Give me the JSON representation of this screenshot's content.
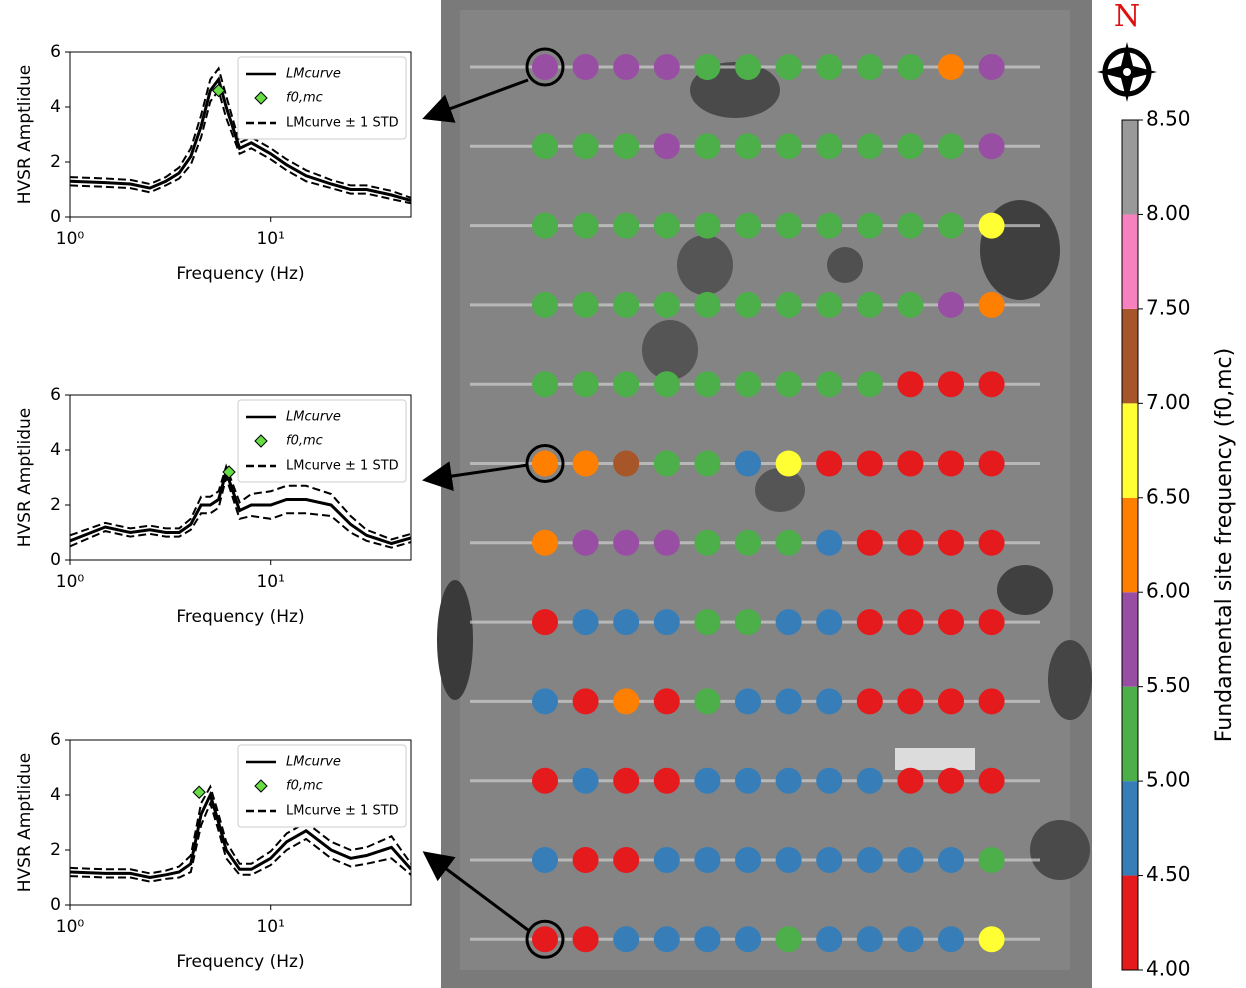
{
  "chart_data": [
    {
      "type": "line",
      "xscale": "log",
      "xlabel": "Frequency (Hz)",
      "ylabel": "HVSR Amptlidue",
      "xlim": [
        1,
        50
      ],
      "ylim": [
        0,
        6
      ],
      "xticks": [
        {
          "value": 1,
          "label": "10⁰"
        },
        {
          "value": 10,
          "label": "10¹"
        }
      ],
      "yticks": [
        0,
        2,
        4,
        6
      ],
      "x": [
        1,
        1.5,
        2,
        2.5,
        3,
        3.5,
        4,
        4.5,
        5,
        5.5,
        6,
        7,
        8,
        10,
        12,
        15,
        20,
        25,
        30,
        40,
        50
      ],
      "series": [
        {
          "name": "LMcurve",
          "color": "#000000",
          "values": [
            1.3,
            1.25,
            1.2,
            1.05,
            1.3,
            1.6,
            2.2,
            3.3,
            4.6,
            5.0,
            4.0,
            2.5,
            2.7,
            2.3,
            1.9,
            1.5,
            1.2,
            1.0,
            1.0,
            0.8,
            0.6
          ]
        },
        {
          "name": "LMcurve ± 1 STD",
          "color": "#000000",
          "dashed": true,
          "upper": [
            1.45,
            1.4,
            1.35,
            1.2,
            1.45,
            1.8,
            2.5,
            3.7,
            5.0,
            5.4,
            4.4,
            2.7,
            2.9,
            2.5,
            2.1,
            1.7,
            1.35,
            1.15,
            1.15,
            0.95,
            0.7
          ],
          "lower": [
            1.15,
            1.1,
            1.05,
            0.9,
            1.15,
            1.4,
            1.9,
            2.9,
            4.2,
            4.6,
            3.6,
            2.3,
            2.5,
            2.1,
            1.7,
            1.3,
            1.05,
            0.85,
            0.85,
            0.65,
            0.5
          ]
        }
      ],
      "points": {
        "name": "f0,mc",
        "color": "#66dd44",
        "x": [
          5.5
        ],
        "values": [
          4.6
        ]
      }
    },
    {
      "type": "line",
      "xscale": "log",
      "xlabel": "Frequency (Hz)",
      "ylabel": "HVSR Amptlidue",
      "xlim": [
        1,
        50
      ],
      "ylim": [
        0,
        6
      ],
      "xticks": [
        {
          "value": 1,
          "label": "10⁰"
        },
        {
          "value": 10,
          "label": "10¹"
        }
      ],
      "yticks": [
        0,
        2,
        4,
        6
      ],
      "x": [
        1,
        1.5,
        2,
        2.5,
        3,
        3.5,
        4,
        4.5,
        5,
        5.5,
        6,
        7,
        8,
        10,
        12,
        15,
        20,
        25,
        30,
        40,
        50
      ],
      "series": [
        {
          "name": "LMcurve",
          "color": "#000000",
          "values": [
            0.7,
            1.2,
            1.0,
            1.1,
            1.0,
            1.0,
            1.3,
            2.0,
            2.0,
            2.2,
            3.2,
            1.8,
            2.0,
            2.0,
            2.2,
            2.2,
            2.0,
            1.3,
            0.9,
            0.6,
            0.8
          ]
        },
        {
          "name": "LMcurve ± 1 STD",
          "color": "#000000",
          "dashed": true,
          "upper": [
            0.9,
            1.35,
            1.15,
            1.25,
            1.15,
            1.15,
            1.5,
            2.3,
            2.3,
            2.5,
            3.4,
            2.1,
            2.4,
            2.5,
            2.7,
            2.7,
            2.4,
            1.6,
            1.1,
            0.75,
            0.95
          ],
          "lower": [
            0.5,
            1.05,
            0.85,
            0.95,
            0.85,
            0.85,
            1.1,
            1.7,
            1.7,
            1.9,
            3.0,
            1.5,
            1.6,
            1.5,
            1.7,
            1.7,
            1.6,
            1.0,
            0.7,
            0.45,
            0.65
          ]
        }
      ],
      "points": {
        "name": "f0,mc",
        "color": "#66dd44",
        "x": [
          6.2
        ],
        "values": [
          3.2
        ]
      }
    },
    {
      "type": "line",
      "xscale": "log",
      "xlabel": "Frequency (Hz)",
      "ylabel": "HVSR Amptlidue",
      "xlim": [
        1,
        50
      ],
      "ylim": [
        0,
        6
      ],
      "xticks": [
        {
          "value": 1,
          "label": "10⁰"
        },
        {
          "value": 10,
          "label": "10¹"
        }
      ],
      "yticks": [
        0,
        2,
        4,
        6
      ],
      "x": [
        1,
        1.5,
        2,
        2.5,
        3,
        3.5,
        4,
        4.5,
        5,
        5.5,
        6,
        7,
        8,
        10,
        12,
        15,
        20,
        25,
        30,
        40,
        50
      ],
      "series": [
        {
          "name": "LMcurve",
          "color": "#000000",
          "values": [
            1.2,
            1.15,
            1.15,
            1.0,
            1.1,
            1.2,
            1.5,
            3.3,
            4.0,
            3.0,
            2.0,
            1.3,
            1.3,
            1.7,
            2.3,
            2.7,
            2.0,
            1.7,
            1.8,
            2.1,
            1.3
          ]
        },
        {
          "name": "LMcurve ± 1 STD",
          "color": "#000000",
          "dashed": true,
          "upper": [
            1.35,
            1.3,
            1.3,
            1.15,
            1.25,
            1.4,
            1.8,
            3.7,
            4.3,
            3.3,
            2.3,
            1.5,
            1.5,
            1.95,
            2.6,
            3.0,
            2.3,
            2.0,
            2.1,
            2.5,
            1.5
          ],
          "lower": [
            1.05,
            1.0,
            1.0,
            0.85,
            0.95,
            1.0,
            1.2,
            2.9,
            3.7,
            2.7,
            1.7,
            1.1,
            1.1,
            1.45,
            2.0,
            2.4,
            1.7,
            1.4,
            1.5,
            1.7,
            1.1
          ]
        }
      ],
      "points": {
        "name": "f0,mc",
        "color": "#66dd44",
        "x": [
          4.4
        ],
        "values": [
          4.1
        ]
      }
    },
    {
      "type": "dot_grid",
      "north": "N",
      "values": [
        [
          5.75,
          5.75,
          5.75,
          5.75,
          5.25,
          5.25,
          5.25,
          5.25,
          5.25,
          5.25,
          6.25,
          5.75
        ],
        [
          5.25,
          5.25,
          5.25,
          5.75,
          5.25,
          5.25,
          5.25,
          5.25,
          5.25,
          5.25,
          5.25,
          5.75
        ],
        [
          5.25,
          5.25,
          5.25,
          5.25,
          5.25,
          5.25,
          5.25,
          5.25,
          5.25,
          5.25,
          5.25,
          6.75
        ],
        [
          5.25,
          5.25,
          5.25,
          5.25,
          5.25,
          5.25,
          5.25,
          5.25,
          5.25,
          5.25,
          5.75,
          6.25
        ],
        [
          5.25,
          5.25,
          5.25,
          5.25,
          5.25,
          5.25,
          5.25,
          5.25,
          5.25,
          4.25,
          4.25,
          4.25
        ],
        [
          6.25,
          6.25,
          7.25,
          5.25,
          5.25,
          4.75,
          6.75,
          4.25,
          4.25,
          4.25,
          4.25,
          4.25
        ],
        [
          6.25,
          5.75,
          5.75,
          5.75,
          5.25,
          5.25,
          5.25,
          4.75,
          4.25,
          4.25,
          4.25,
          4.25
        ],
        [
          4.25,
          4.75,
          4.75,
          4.75,
          5.25,
          5.25,
          4.75,
          4.75,
          4.25,
          4.25,
          4.25,
          4.25
        ],
        [
          4.75,
          4.25,
          6.25,
          4.25,
          5.25,
          4.75,
          4.75,
          4.75,
          4.25,
          4.25,
          4.25,
          4.25
        ],
        [
          4.25,
          4.75,
          4.25,
          4.25,
          4.75,
          4.75,
          4.75,
          4.75,
          4.75,
          4.25,
          4.25,
          4.25
        ],
        [
          4.75,
          4.25,
          4.25,
          4.75,
          4.75,
          4.75,
          4.75,
          4.75,
          4.75,
          4.75,
          4.75,
          5.25
        ],
        [
          4.25,
          4.25,
          4.75,
          4.75,
          4.75,
          4.75,
          5.25,
          4.75,
          4.75,
          4.75,
          4.75,
          6.75
        ]
      ],
      "colorbar": {
        "label": "Fundamental site frequency (f0,mc)",
        "ylim": [
          4,
          8.5
        ],
        "boundaries": [
          4,
          4.5,
          5,
          5.5,
          6,
          6.5,
          7,
          7.5,
          8,
          8.5
        ],
        "colors": [
          "#e41a1c",
          "#377eb8",
          "#4daf4a",
          "#984ea3",
          "#ff7f00",
          "#ffff33",
          "#a65628",
          "#f781bf",
          "#999999"
        ],
        "yticks": [
          {
            "value": 4,
            "label": "4.00"
          },
          {
            "value": 4.5,
            "label": "4.50"
          },
          {
            "value": 5,
            "label": "5.00"
          },
          {
            "value": 5.5,
            "label": "5.50"
          },
          {
            "value": 6,
            "label": "6.00"
          },
          {
            "value": 6.5,
            "label": "6.50"
          },
          {
            "value": 7,
            "label": "7.00"
          },
          {
            "value": 7.5,
            "label": "7.50"
          },
          {
            "value": 8,
            "label": "8.00"
          },
          {
            "value": 8.5,
            "label": "8.50"
          }
        ]
      }
    }
  ]
}
